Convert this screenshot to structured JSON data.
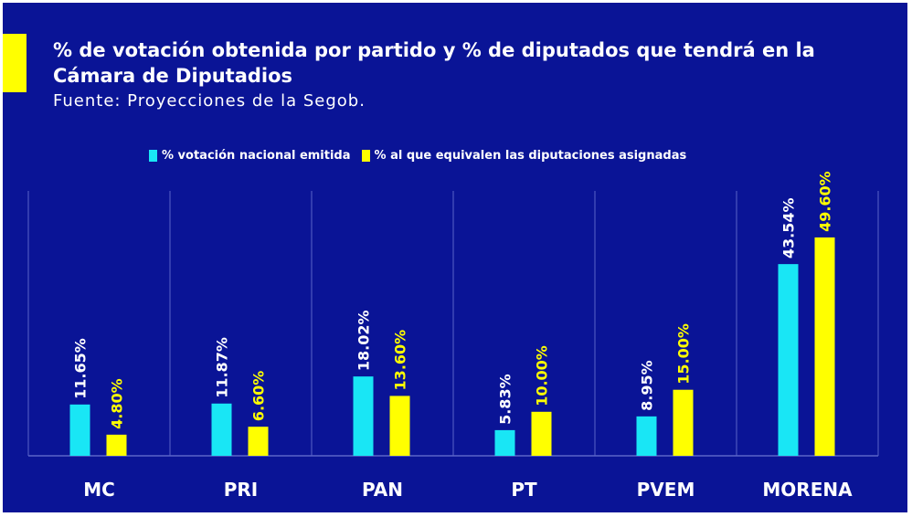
{
  "colors": {
    "background": "#0A1496",
    "accent": "#FFFF00",
    "series_vote": "#19E6F5",
    "series_seats": "#FFFF00",
    "label_vote": "#FFFFFF",
    "label_seats": "#FFFF00",
    "gridline": "#5A64C8"
  },
  "chart_data": {
    "type": "bar",
    "title": "% de votación obtenida por partido y % de diputados que tendrá en la Cámara de Diputadios",
    "subtitle": "Fuente: Proyecciones de la Segob.",
    "categories": [
      "MC",
      "PRI",
      "PAN",
      "PT",
      "PVEM",
      "MORENA"
    ],
    "series": [
      {
        "name": "% votación nacional emitida",
        "values": [
          11.65,
          11.87,
          18.02,
          5.83,
          8.95,
          43.54
        ],
        "labels": [
          "11.65%",
          "11.87%",
          "18.02%",
          "5.83%",
          "8.95%",
          "43.54%"
        ]
      },
      {
        "name": "% al que equivalen las diputaciones asignadas",
        "values": [
          4.8,
          6.6,
          13.6,
          10.0,
          15.0,
          49.6
        ],
        "labels": [
          "4.80%",
          "6.60%",
          "13.60%",
          "10.00%",
          "15.00%",
          "49.60%"
        ]
      }
    ],
    "xlabel": "",
    "ylabel": "",
    "ylim": [
      0,
      53
    ],
    "legend_position": "top-center",
    "grid": "vertical"
  }
}
